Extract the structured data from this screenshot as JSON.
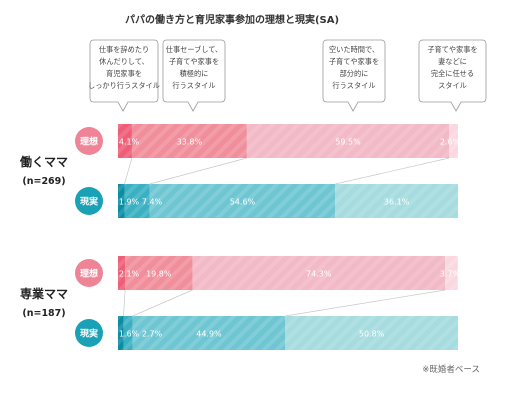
{
  "chart_data": {
    "type": "bar",
    "stacked": true,
    "orientation": "horizontal",
    "title": "パパの働き方と育児家事参加の理想と現実(SA)",
    "categories_legend": [
      {
        "name": "仕事を辞めたり休んだりして、育児家事をしっかり行うスタイル",
        "lines": [
          "仕事を辞めたり",
          "休んだりして、",
          "育児家事を",
          "しっかり行うスタイル"
        ]
      },
      {
        "name": "仕事セーブして、子育てや家事を積極的に行うスタイル",
        "lines": [
          "仕事セーブして、",
          "子育てや家事を",
          "積極的に",
          "行うスタイル"
        ]
      },
      {
        "name": "空いた時間で、子育てや家事を部分的に行うスタイル",
        "lines": [
          "空いた時間で、",
          "子育てや家事を",
          "部分的に",
          "行うスタイル"
        ]
      },
      {
        "name": "子育てや家事を妻などに完全に任せるスタイル",
        "lines": [
          "子育てや家事を",
          "妻などに",
          "完全に任せる",
          "スタイル"
        ]
      }
    ],
    "groups": [
      {
        "label": "働くママ",
        "n": "(n=269)",
        "bars": [
          {
            "tag": "理想",
            "kind": "ideal",
            "values": [
              4.1,
              33.8,
              59.5,
              2.6
            ],
            "labels": [
              "4.1%",
              "33.8%",
              "59.5%",
              "2.6%"
            ]
          },
          {
            "tag": "現実",
            "kind": "real",
            "values": [
              1.9,
              7.4,
              54.6,
              36.1
            ],
            "labels": [
              "1.9%",
              "7.4%",
              "54.6%",
              "36.1%"
            ]
          }
        ]
      },
      {
        "label": "専業ママ",
        "n": "(n=187)",
        "bars": [
          {
            "tag": "理想",
            "kind": "ideal",
            "values": [
              2.1,
              19.8,
              74.3,
              3.7
            ],
            "labels": [
              "2.1%",
              "19.8%",
              "74.3%",
              "3.7%"
            ]
          },
          {
            "tag": "現実",
            "kind": "real",
            "values": [
              1.6,
              2.7,
              44.9,
              50.8
            ],
            "labels": [
              "1.6%",
              "2.7%",
              "44.9%",
              "50.8%"
            ]
          }
        ]
      }
    ],
    "colors": {
      "ideal": [
        "#ee5f77",
        "#f08f9b",
        "#f2b9c6",
        "#fad8e0"
      ],
      "real": [
        "#0a8ca3",
        "#3ab0c2",
        "#6fc6d3",
        "#a6dcdf"
      ],
      "ideal_tag": "#ef8496",
      "real_tag": "#1ba1b5"
    },
    "xlim": [
      0,
      100
    ],
    "grid": false,
    "legend": "callouts-top",
    "footnote": "※既婚者ベース"
  }
}
